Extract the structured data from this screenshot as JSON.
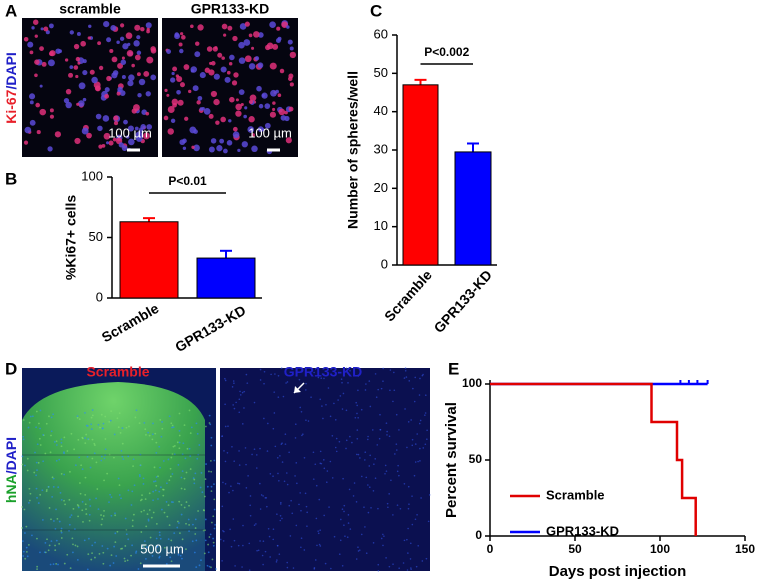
{
  "images": [
    {
      "panel": "A",
      "labels": [
        "scramble",
        "GPR133-KD"
      ],
      "stain": [
        "Ki-67",
        "/DAPI"
      ],
      "scale_bar": "100 µm"
    },
    {
      "panel": "D",
      "labels": [
        "Scramble",
        "GPR133-KD"
      ],
      "stain": [
        "hNA",
        "/DAPI"
      ],
      "scale_bar": "500 µm"
    }
  ],
  "chart_data": [
    {
      "type": "bar",
      "panel": "B",
      "ylabel": "%Ki67+ cells",
      "categories": [
        "Scramble",
        "GPR133-KD"
      ],
      "values": [
        63,
        33
      ],
      "errors": [
        3,
        6
      ],
      "colors": [
        "#ff0000",
        "#0000ff"
      ],
      "ylim": [
        0,
        100
      ],
      "yticks": [
        0,
        50,
        100
      ],
      "annotation": "P<0.01"
    },
    {
      "type": "bar",
      "panel": "C",
      "ylabel": "Number of spheres/well",
      "categories": [
        "Scramble",
        "GPR133-KD"
      ],
      "values": [
        47,
        29.5
      ],
      "errors": [
        1.3,
        2.2
      ],
      "colors": [
        "#ff0000",
        "#0000ff"
      ],
      "ylim": [
        0,
        60
      ],
      "yticks": [
        0,
        10,
        20,
        30,
        40,
        50,
        60
      ],
      "annotation": "P<0.002"
    },
    {
      "type": "step",
      "panel": "E",
      "xlabel": "Days post injection",
      "ylabel": "Percent survival",
      "xlim": [
        0,
        150
      ],
      "xticks": [
        0,
        50,
        100,
        150
      ],
      "ylim": [
        0,
        100
      ],
      "yticks": [
        0,
        50,
        100
      ],
      "series": [
        {
          "name": "GPR133-KD",
          "color": "#0000ff",
          "x": [
            0,
            128
          ],
          "values": [
            100,
            100
          ],
          "censored": [
            112,
            117,
            122,
            128
          ]
        },
        {
          "name": "Scramble",
          "color": "#e00000",
          "x": [
            0,
            95,
            110,
            113,
            121
          ],
          "values": [
            100,
            75,
            50,
            25,
            0
          ]
        }
      ]
    }
  ]
}
